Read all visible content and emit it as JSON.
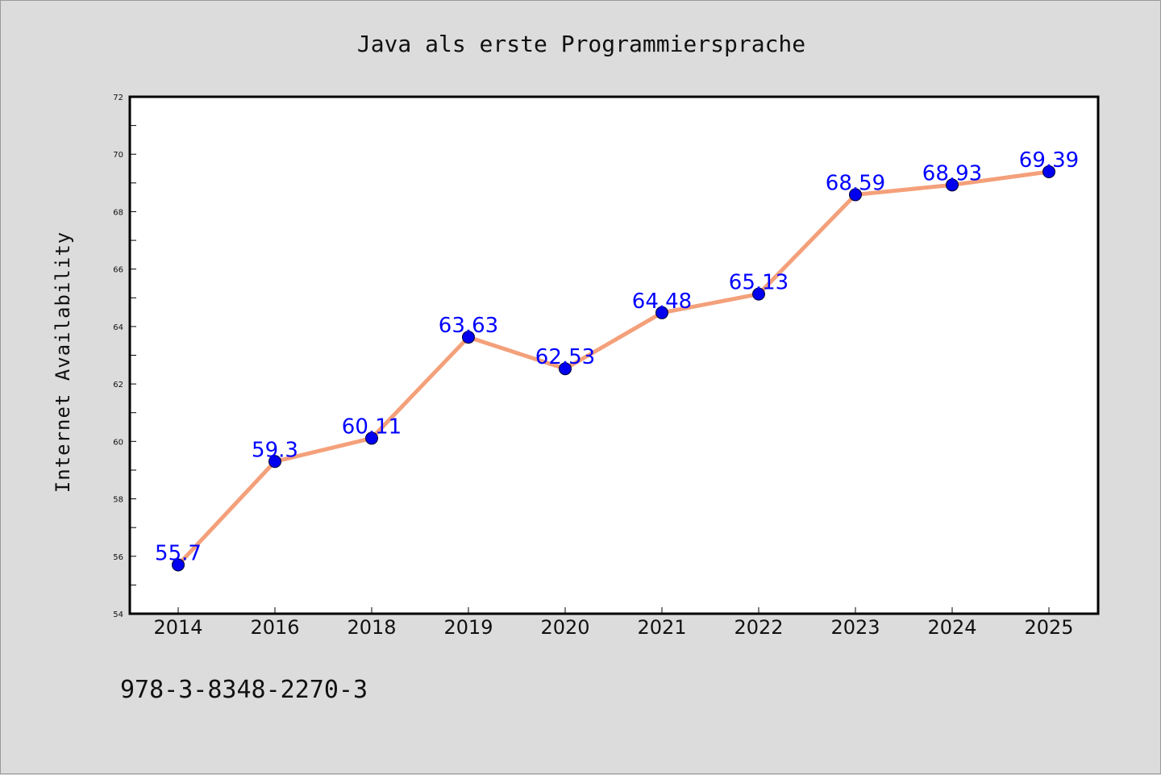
{
  "chart_data": {
    "type": "line",
    "title": "Java als erste Programmiersprache",
    "xlabel": "",
    "ylabel": "Internet Availability",
    "categories": [
      "2014",
      "2016",
      "2018",
      "2019",
      "2020",
      "2021",
      "2022",
      "2023",
      "2024",
      "2025"
    ],
    "values": [
      55.7,
      59.3,
      60.11,
      63.63,
      62.53,
      64.48,
      65.13,
      68.59,
      68.93,
      69.39
    ],
    "data_labels": [
      "55.7",
      "59.3",
      "60.11",
      "63.63",
      "62.53",
      "64.48",
      "65.13",
      "68.59",
      "68.93",
      "69.39"
    ],
    "ylim": [
      54,
      72
    ],
    "yticks": [
      54,
      56,
      58,
      60,
      62,
      64,
      66,
      68,
      70,
      72
    ],
    "grid": false,
    "line_color": "#f4a07a",
    "marker_color": "#0000ee",
    "label_color": "#0000ff"
  },
  "footer": {
    "isbn": "978-3-8348-2270-3"
  },
  "colors": {
    "background": "#dcdcdc",
    "plot_background": "#ffffff"
  }
}
